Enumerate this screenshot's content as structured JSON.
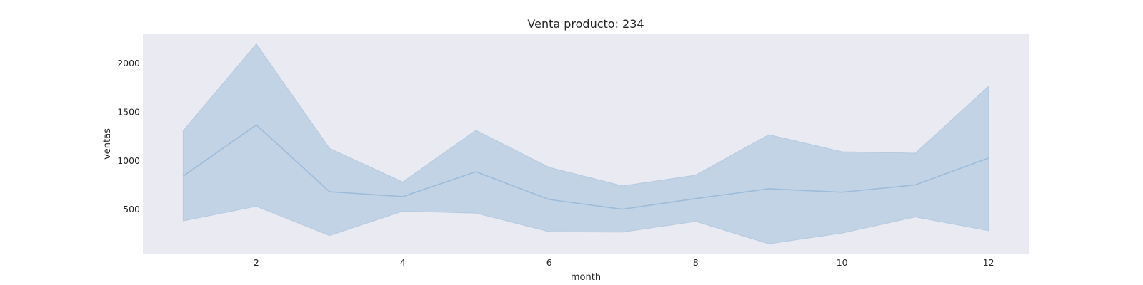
{
  "chart_data": {
    "type": "area",
    "title": "Venta producto: 234",
    "xlabel": "month",
    "ylabel": "ventas",
    "x": [
      1,
      2,
      3,
      4,
      5,
      6,
      7,
      8,
      9,
      10,
      11,
      12
    ],
    "series": [
      {
        "values": [
          840,
          1365,
          680,
          630,
          885,
          600,
          500,
          610,
          710,
          675,
          750,
          1025
        ],
        "lower": [
          380,
          530,
          230,
          480,
          460,
          270,
          265,
          375,
          145,
          255,
          420,
          280
        ],
        "upper": [
          1305,
          2195,
          1125,
          780,
          1310,
          930,
          740,
          850,
          1265,
          1090,
          1075,
          1760
        ]
      }
    ],
    "xticks": [
      2,
      4,
      6,
      8,
      10,
      12
    ],
    "yticks": [
      500,
      1000,
      1500,
      2000
    ],
    "xlim": [
      0.45,
      12.55
    ],
    "ylim": [
      45,
      2295
    ],
    "grid": false,
    "colors": {
      "background": "#eaeaf2",
      "line": "#9dbcd9",
      "band": "#c2d3e5",
      "text": "#262626"
    }
  }
}
